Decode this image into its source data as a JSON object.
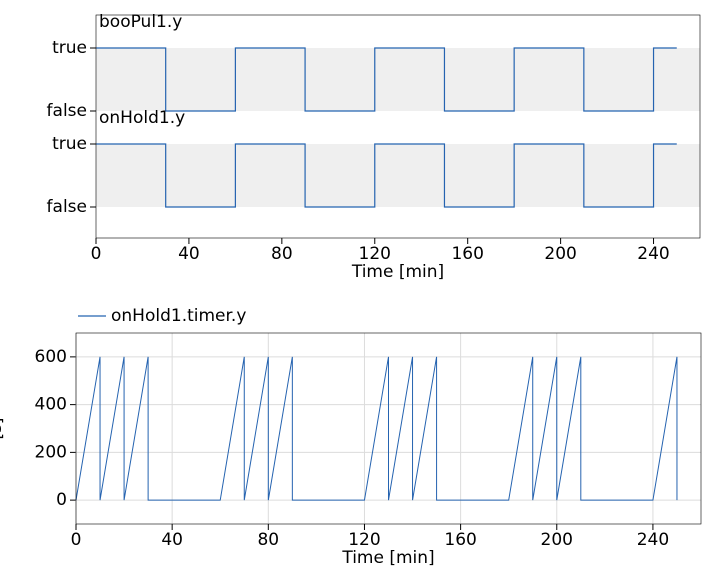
{
  "chart_data": [
    {
      "type": "step",
      "xlabel": "Time [min]",
      "xlim": [
        0,
        260
      ],
      "xticks": [
        0,
        40,
        80,
        120,
        160,
        200,
        240
      ],
      "series": [
        {
          "name": "booPul1.y",
          "color": "#2563b0",
          "yticks": [
            {
              "value": 1,
              "label": "true"
            },
            {
              "value": 0,
              "label": "false"
            }
          ],
          "x": [
            0,
            30,
            30,
            60,
            60,
            90,
            90,
            120,
            120,
            150,
            150,
            180,
            180,
            210,
            210,
            240,
            240,
            250
          ],
          "values": [
            1,
            1,
            0,
            0,
            1,
            1,
            0,
            0,
            1,
            1,
            0,
            0,
            1,
            1,
            0,
            0,
            1,
            1
          ]
        },
        {
          "name": "onHold1.y",
          "color": "#2563b0",
          "yticks": [
            {
              "value": 1,
              "label": "true"
            },
            {
              "value": 0,
              "label": "false"
            }
          ],
          "x": [
            0,
            30,
            30,
            60,
            60,
            90,
            90,
            120,
            120,
            150,
            150,
            180,
            180,
            210,
            210,
            240,
            240,
            250
          ],
          "values": [
            1,
            1,
            0,
            0,
            1,
            1,
            0,
            0,
            1,
            1,
            0,
            0,
            1,
            1,
            0,
            0,
            1,
            1
          ]
        }
      ]
    },
    {
      "type": "line",
      "xlabel": "Time [min]",
      "ylabel": "[s]",
      "xlim": [
        0,
        260
      ],
      "xticks": [
        0,
        40,
        80,
        120,
        160,
        200,
        240
      ],
      "ylim": [
        -100,
        700
      ],
      "yticks": [
        0,
        200,
        400,
        600
      ],
      "grid": true,
      "series": [
        {
          "name": "onHold1.timer.y",
          "color": "#2563b0",
          "x": [
            0,
            10,
            10,
            20,
            20,
            30,
            30,
            60,
            70,
            70,
            80,
            80,
            90,
            90,
            120,
            130,
            130,
            140,
            140,
            150,
            150,
            180,
            190,
            190,
            200,
            200,
            210,
            210,
            240,
            250,
            250
          ],
          "values": [
            0,
            600,
            0,
            600,
            0,
            600,
            0,
            0,
            600,
            0,
            600,
            0,
            600,
            0,
            0,
            600,
            0,
            600,
            0,
            600,
            0,
            0,
            600,
            0,
            600,
            0,
            600,
            0,
            0,
            600,
            0
          ]
        }
      ]
    }
  ]
}
